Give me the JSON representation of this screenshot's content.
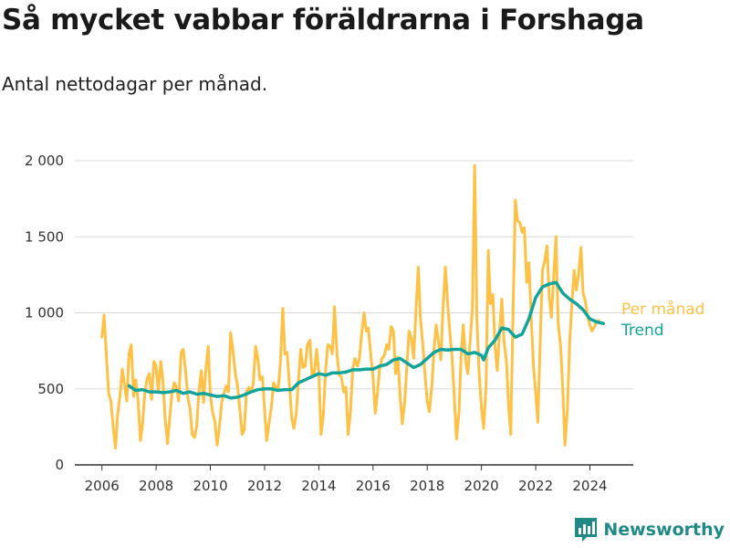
{
  "title": "Så mycket vabbar föräldrarna i Forshaga",
  "subtitle": "Antal nettodagar per månad.",
  "brand": {
    "name": "Newsworthy",
    "icon": "bar-chart-logo-icon",
    "color": "#1f8a86"
  },
  "colors": {
    "monthly": "#ffc145",
    "trend": "#12a39a",
    "grid": "#d9d9d9",
    "axis": "#333333"
  },
  "chart_data": {
    "type": "line",
    "xlim": [
      2005.0,
      2025.6
    ],
    "ylim": [
      0,
      2000
    ],
    "xticks": [
      2006,
      2008,
      2010,
      2012,
      2014,
      2016,
      2018,
      2020,
      2022,
      2024
    ],
    "xtick_labels": [
      "2006",
      "2008",
      "2010",
      "2012",
      "2014",
      "2016",
      "2018",
      "2020",
      "2022",
      "2024"
    ],
    "yticks": [
      0,
      500,
      1000,
      1500,
      2000
    ],
    "ytick_labels": [
      "0",
      "500",
      "1 000",
      "1 500",
      "2 000"
    ],
    "grid": "horizontal",
    "legend_position": "right-end",
    "series": [
      {
        "name": "Per månad",
        "color": "#ffc145",
        "x": [
          2006.0,
          2006.08,
          2006.17,
          2006.25,
          2006.33,
          2006.42,
          2006.5,
          2006.58,
          2006.67,
          2006.75,
          2006.83,
          2006.92,
          2007.0,
          2007.08,
          2007.17,
          2007.25,
          2007.33,
          2007.42,
          2007.5,
          2007.58,
          2007.67,
          2007.75,
          2007.83,
          2007.92,
          2008.0,
          2008.08,
          2008.17,
          2008.25,
          2008.33,
          2008.42,
          2008.5,
          2008.58,
          2008.67,
          2008.75,
          2008.83,
          2008.92,
          2009.0,
          2009.08,
          2009.17,
          2009.25,
          2009.33,
          2009.42,
          2009.5,
          2009.58,
          2009.67,
          2009.75,
          2009.83,
          2009.92,
          2010.0,
          2010.08,
          2010.17,
          2010.25,
          2010.33,
          2010.42,
          2010.5,
          2010.58,
          2010.67,
          2010.75,
          2010.83,
          2010.92,
          2011.0,
          2011.08,
          2011.17,
          2011.25,
          2011.33,
          2011.42,
          2011.5,
          2011.58,
          2011.67,
          2011.75,
          2011.83,
          2011.92,
          2012.0,
          2012.08,
          2012.17,
          2012.25,
          2012.33,
          2012.42,
          2012.5,
          2012.58,
          2012.67,
          2012.75,
          2012.83,
          2012.92,
          2013.0,
          2013.08,
          2013.17,
          2013.25,
          2013.33,
          2013.42,
          2013.5,
          2013.58,
          2013.67,
          2013.75,
          2013.83,
          2013.92,
          2014.0,
          2014.08,
          2014.17,
          2014.25,
          2014.33,
          2014.42,
          2014.5,
          2014.58,
          2014.67,
          2014.75,
          2014.83,
          2014.92,
          2015.0,
          2015.08,
          2015.17,
          2015.25,
          2015.33,
          2015.42,
          2015.5,
          2015.58,
          2015.67,
          2015.75,
          2015.83,
          2015.92,
          2016.0,
          2016.08,
          2016.17,
          2016.25,
          2016.33,
          2016.42,
          2016.5,
          2016.58,
          2016.67,
          2016.75,
          2016.83,
          2016.92,
          2017.0,
          2017.08,
          2017.17,
          2017.25,
          2017.33,
          2017.42,
          2017.5,
          2017.58,
          2017.67,
          2017.75,
          2017.83,
          2017.92,
          2018.0,
          2018.08,
          2018.17,
          2018.25,
          2018.33,
          2018.42,
          2018.5,
          2018.58,
          2018.67,
          2018.75,
          2018.83,
          2018.92,
          2019.0,
          2019.08,
          2019.17,
          2019.25,
          2019.33,
          2019.42,
          2019.5,
          2019.58,
          2019.67,
          2019.75,
          2019.83,
          2019.92,
          2020.0,
          2020.08,
          2020.17,
          2020.25,
          2020.33,
          2020.42,
          2020.5,
          2020.58,
          2020.67,
          2020.75,
          2020.83,
          2020.92,
          2021.0,
          2021.08,
          2021.17,
          2021.25,
          2021.33,
          2021.42,
          2021.5,
          2021.58,
          2021.67,
          2021.75,
          2021.83,
          2021.92,
          2022.0,
          2022.08,
          2022.17,
          2022.25,
          2022.33,
          2022.42,
          2022.5,
          2022.58,
          2022.67,
          2022.75,
          2022.83,
          2022.92,
          2023.0,
          2023.08,
          2023.17,
          2023.25,
          2023.33,
          2023.42,
          2023.5,
          2023.58,
          2023.67,
          2023.75,
          2023.83,
          2023.92,
          2024.0,
          2024.08,
          2024.17,
          2024.25,
          2024.33
        ],
        "y": [
          840,
          985,
          700,
          470,
          420,
          240,
          110,
          330,
          460,
          630,
          530,
          420,
          730,
          790,
          450,
          560,
          430,
          160,
          270,
          470,
          570,
          600,
          430,
          680,
          650,
          480,
          680,
          550,
          310,
          140,
          310,
          470,
          540,
          510,
          420,
          740,
          760,
          630,
          440,
          370,
          200,
          180,
          260,
          490,
          620,
          410,
          620,
          780,
          460,
          350,
          280,
          130,
          240,
          410,
          470,
          520,
          480,
          870,
          760,
          600,
          520,
          380,
          200,
          230,
          480,
          510,
          480,
          530,
          780,
          700,
          560,
          580,
          360,
          160,
          280,
          380,
          540,
          510,
          500,
          660,
          1030,
          730,
          740,
          520,
          310,
          240,
          340,
          560,
          760,
          640,
          650,
          790,
          820,
          580,
          600,
          760,
          610,
          200,
          330,
          620,
          790,
          780,
          730,
          1040,
          730,
          590,
          580,
          480,
          510,
          200,
          350,
          630,
          700,
          650,
          700,
          860,
          1000,
          880,
          900,
          720,
          580,
          340,
          480,
          640,
          700,
          720,
          790,
          760,
          910,
          880,
          600,
          710,
          450,
          270,
          420,
          650,
          880,
          830,
          700,
          1000,
          1300,
          960,
          800,
          590,
          420,
          350,
          520,
          760,
          920,
          800,
          690,
          1020,
          1300,
          1070,
          880,
          700,
          440,
          170,
          340,
          720,
          920,
          680,
          600,
          810,
          1040,
          1970,
          960,
          580,
          380,
          240,
          520,
          1410,
          1060,
          1120,
          780,
          620,
          880,
          1090,
          820,
          680,
          400,
          200,
          1050,
          1740,
          1610,
          1590,
          1530,
          1560,
          1200,
          1330,
          990,
          640,
          480,
          280,
          830,
          1280,
          1340,
          1440,
          1100,
          970,
          1260,
          1500,
          930,
          780,
          490,
          130,
          360,
          790,
          1050,
          1280,
          1150,
          1250,
          1430,
          1130,
          1080,
          970,
          920,
          880,
          910,
          940,
          950
        ]
      },
      {
        "name": "Trend",
        "color": "#12a39a",
        "x": [
          2007.0,
          2007.25,
          2007.5,
          2007.75,
          2008.0,
          2008.25,
          2008.5,
          2008.75,
          2009.0,
          2009.25,
          2009.5,
          2009.75,
          2010.0,
          2010.25,
          2010.5,
          2010.75,
          2011.0,
          2011.25,
          2011.5,
          2011.75,
          2012.0,
          2012.25,
          2012.5,
          2012.75,
          2013.0,
          2013.25,
          2013.5,
          2013.75,
          2014.0,
          2014.25,
          2014.5,
          2014.75,
          2015.0,
          2015.25,
          2015.5,
          2015.75,
          2016.0,
          2016.25,
          2016.5,
          2016.75,
          2017.0,
          2017.25,
          2017.5,
          2017.75,
          2018.0,
          2018.25,
          2018.5,
          2018.75,
          2019.0,
          2019.25,
          2019.5,
          2019.75,
          2020.0,
          2020.08,
          2020.25,
          2020.5,
          2020.75,
          2021.0,
          2021.25,
          2021.5,
          2021.75,
          2022.0,
          2022.25,
          2022.5,
          2022.75,
          2023.0,
          2023.25,
          2023.5,
          2023.75,
          2024.0,
          2024.25,
          2024.5
        ],
        "y": [
          520,
          490,
          495,
          480,
          480,
          475,
          480,
          490,
          470,
          480,
          465,
          470,
          460,
          450,
          455,
          440,
          445,
          460,
          480,
          495,
          500,
          500,
          490,
          495,
          495,
          540,
          560,
          580,
          600,
          590,
          605,
          605,
          610,
          625,
          625,
          630,
          630,
          650,
          660,
          690,
          700,
          670,
          640,
          660,
          700,
          740,
          760,
          755,
          760,
          760,
          730,
          740,
          720,
          690,
          770,
          820,
          900,
          890,
          840,
          860,
          960,
          1100,
          1170,
          1190,
          1200,
          1130,
          1090,
          1060,
          1020,
          960,
          940,
          930
        ]
      }
    ]
  }
}
